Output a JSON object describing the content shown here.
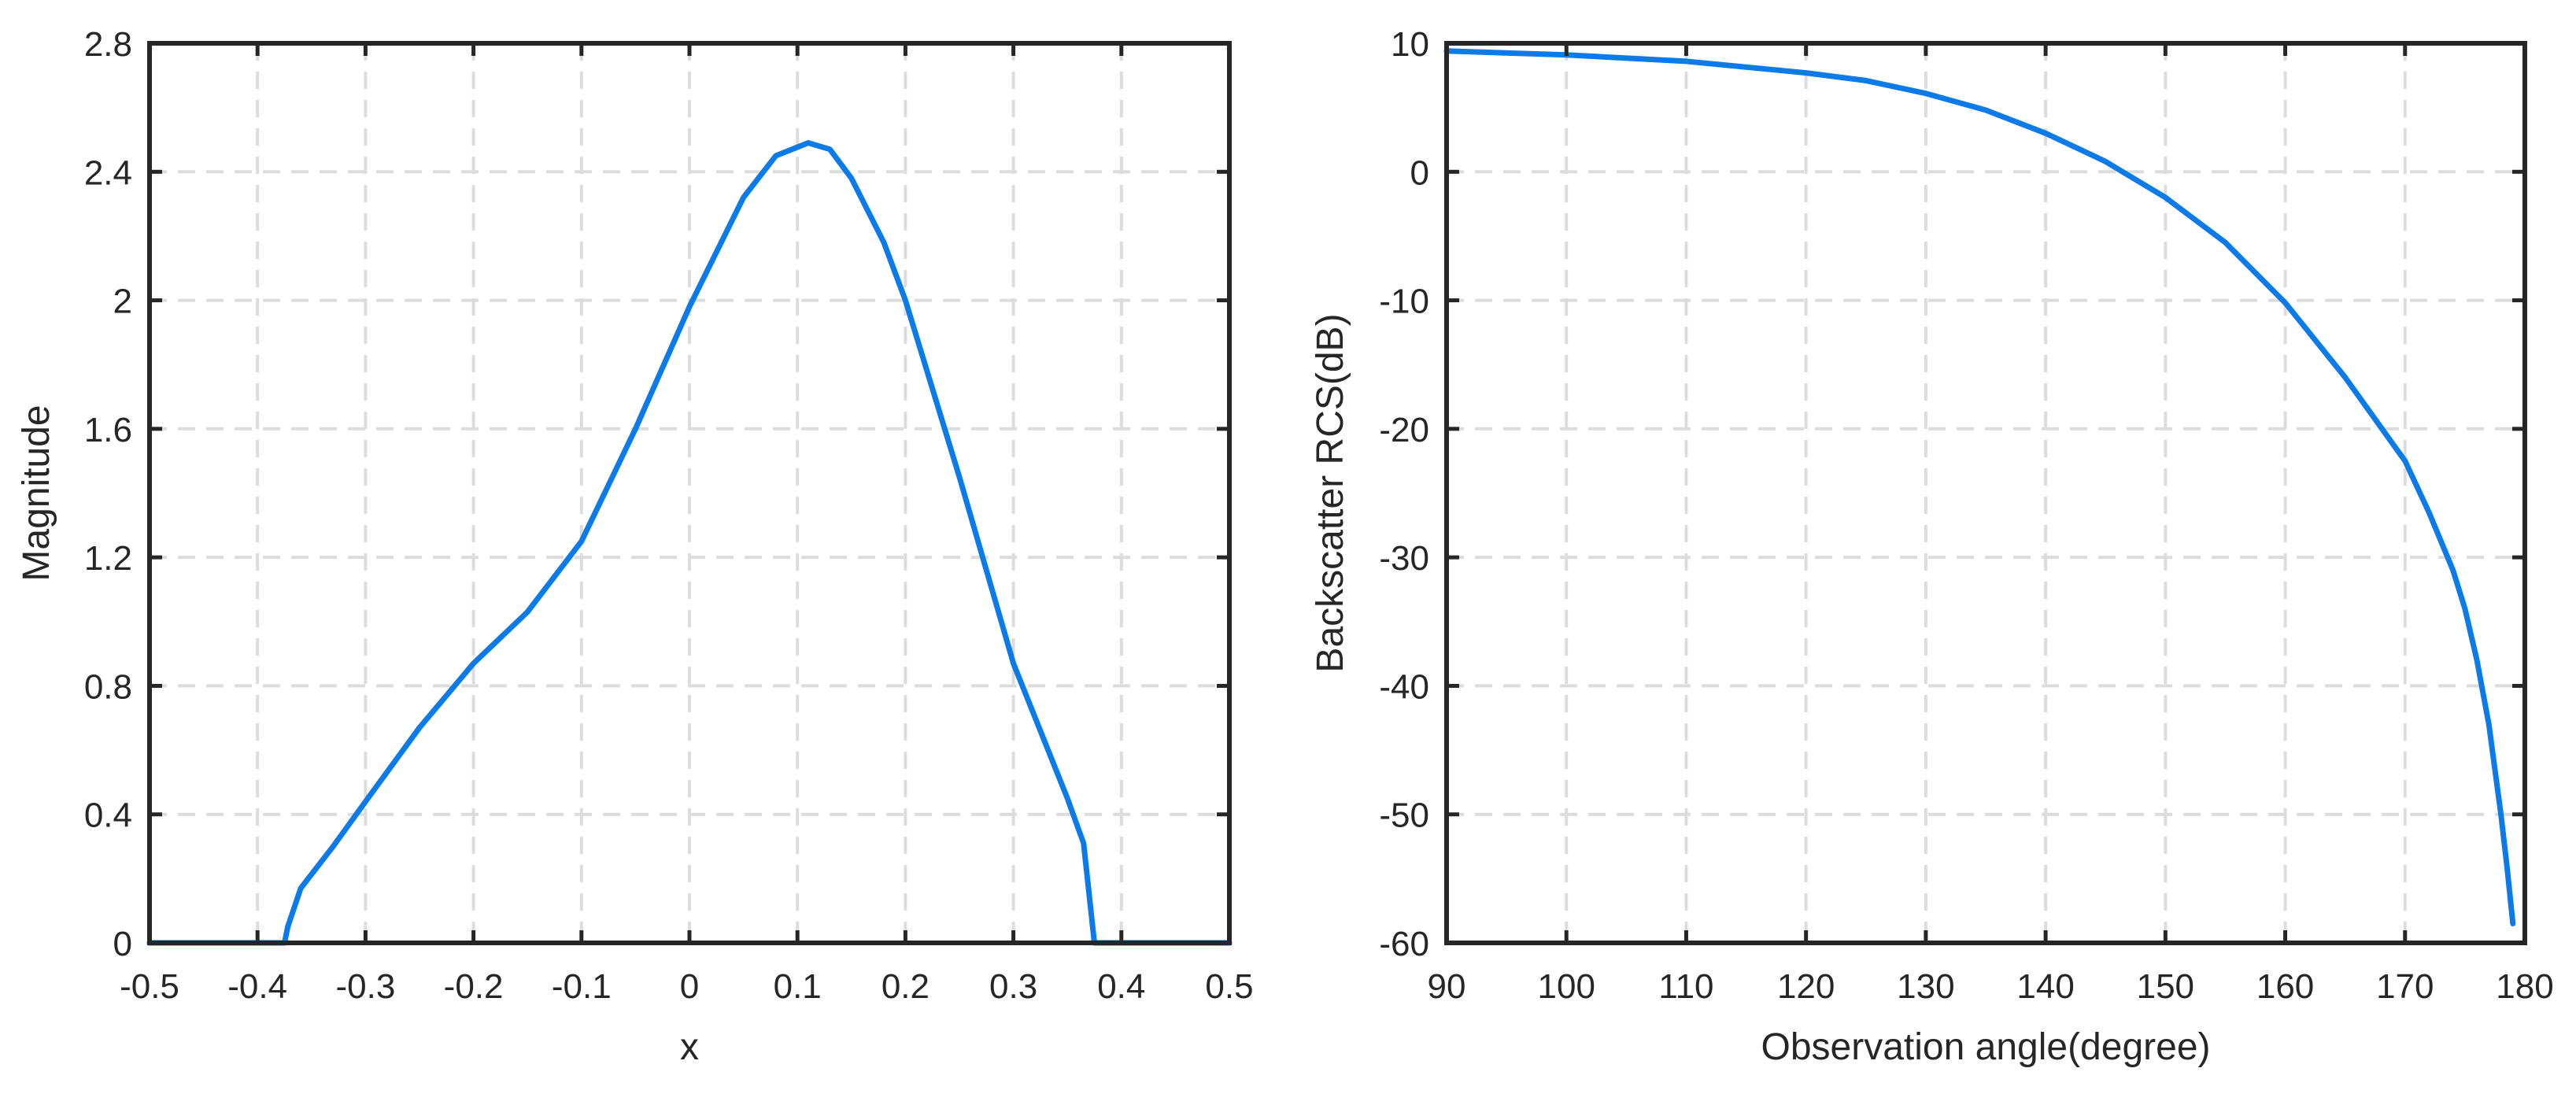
{
  "colors": {
    "line": "#0b7bea",
    "axis": "#262626",
    "grid": "#dcdcdc",
    "background": "#ffffff"
  },
  "chart_data": [
    {
      "type": "line",
      "title": "",
      "xlabel": "x",
      "ylabel": "Magnitude",
      "xlim": [
        -0.5,
        0.5
      ],
      "ylim": [
        0,
        2.8
      ],
      "grid": true,
      "xticks": [
        -0.5,
        -0.4,
        -0.3,
        -0.2,
        -0.1,
        0,
        0.1,
        0.2,
        0.3,
        0.4,
        0.5
      ],
      "yticks": [
        0,
        0.4,
        0.8,
        1.2,
        1.6,
        2,
        2.4,
        2.8
      ],
      "xtick_labels": [
        "-0.5",
        "-0.4",
        "-0.3",
        "-0.2",
        "-0.1",
        "0",
        "0.1",
        "0.2",
        "0.3",
        "0.4",
        "0.5"
      ],
      "ytick_labels": [
        "0",
        "0.4",
        "0.8",
        "1.2",
        "1.6",
        "2",
        "2.4",
        "2.8"
      ],
      "series": [
        {
          "name": "magnitude",
          "x": [
            -0.5,
            -0.375,
            -0.372,
            -0.36,
            -0.33,
            -0.3,
            -0.25,
            -0.2,
            -0.15,
            -0.1,
            -0.05,
            0,
            0.05,
            0.08,
            0.11,
            0.13,
            0.15,
            0.18,
            0.2,
            0.25,
            0.3,
            0.35,
            0.365,
            0.375,
            0.5
          ],
          "y": [
            0,
            0,
            0.05,
            0.17,
            0.3,
            0.44,
            0.67,
            0.87,
            1.03,
            1.25,
            1.6,
            1.98,
            2.32,
            2.45,
            2.49,
            2.47,
            2.38,
            2.18,
            2.0,
            1.45,
            0.87,
            0.45,
            0.31,
            0,
            0
          ]
        }
      ]
    },
    {
      "type": "line",
      "title": "",
      "xlabel": "Observation angle(degree)",
      "ylabel": "Backscatter RCS(dB)",
      "xlim": [
        90,
        180
      ],
      "ylim": [
        -60,
        10
      ],
      "grid": true,
      "xticks": [
        90,
        100,
        110,
        120,
        130,
        140,
        150,
        160,
        170,
        180
      ],
      "yticks": [
        -60,
        -50,
        -40,
        -30,
        -20,
        -10,
        0,
        10
      ],
      "xtick_labels": [
        "90",
        "100",
        "110",
        "120",
        "130",
        "140",
        "150",
        "160",
        "170",
        "180"
      ],
      "ytick_labels": [
        "-60",
        "-50",
        "-40",
        "-30",
        "-20",
        "-10",
        "0",
        "10"
      ],
      "series": [
        {
          "name": "backscatter RCS",
          "x": [
            90,
            100,
            110,
            120,
            125,
            130,
            135,
            140,
            145,
            150,
            155,
            160,
            165,
            170,
            172,
            174,
            175,
            176,
            177,
            178,
            178.5,
            179
          ],
          "y": [
            9.4,
            9.1,
            8.6,
            7.7,
            7.1,
            6.1,
            4.8,
            3.0,
            0.8,
            -2.0,
            -5.5,
            -10.2,
            -16.0,
            -22.5,
            -26.5,
            -31.0,
            -34.0,
            -38.0,
            -43.0,
            -50.0,
            -54.0,
            -58.5
          ]
        }
      ]
    }
  ]
}
